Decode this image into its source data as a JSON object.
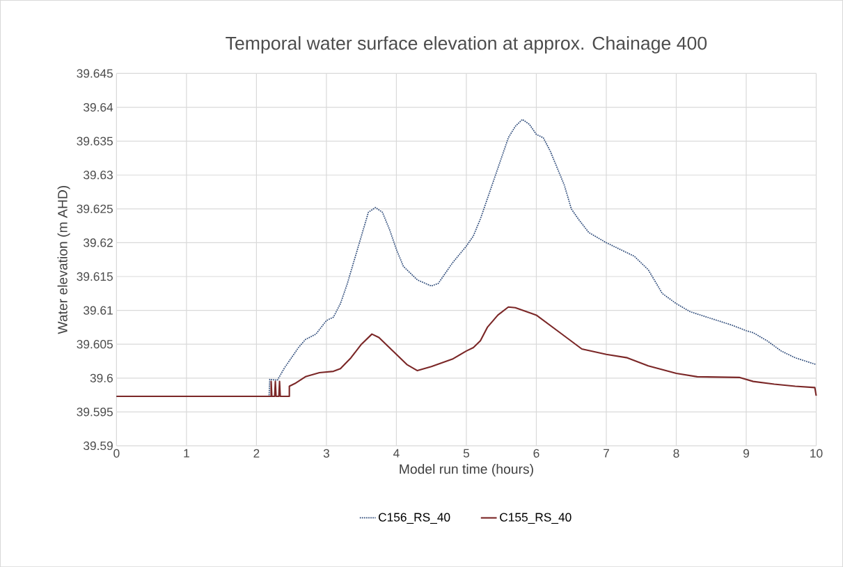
{
  "chart_data": {
    "type": "line",
    "title": "Temporal water surface elevation at approx. Chainage 400",
    "xlabel": "Model run time (hours)",
    "ylabel": "Water elevation (m AHD)",
    "xlim": [
      0,
      10
    ],
    "xticks": [
      0,
      1,
      2,
      3,
      4,
      5,
      6,
      7,
      8,
      9,
      10
    ],
    "ylim": [
      39.59,
      39.645
    ],
    "yticks": [
      39.59,
      39.595,
      39.6,
      39.605,
      39.61,
      39.615,
      39.62,
      39.625,
      39.63,
      39.635,
      39.64,
      39.645
    ],
    "grid": true,
    "legend": "bottom",
    "marker": "none",
    "series": [
      {
        "name": "C156_RS_40",
        "color": "#2e4b7a",
        "line_style": "dotted",
        "x": [
          0,
          2.18,
          2.19,
          2.3,
          2.4,
          2.5,
          2.6,
          2.7,
          2.85,
          3.0,
          3.1,
          3.2,
          3.3,
          3.4,
          3.5,
          3.6,
          3.7,
          3.8,
          3.9,
          4.0,
          4.1,
          4.3,
          4.5,
          4.6,
          4.8,
          5.0,
          5.1,
          5.2,
          5.3,
          5.4,
          5.5,
          5.6,
          5.7,
          5.8,
          5.9,
          6.0,
          6.1,
          6.2,
          6.3,
          6.4,
          6.5,
          6.6,
          6.75,
          7.0,
          7.2,
          7.4,
          7.6,
          7.8,
          8.0,
          8.2,
          8.5,
          8.8,
          9.0,
          9.1,
          9.3,
          9.5,
          9.7,
          10.0
        ],
        "values": [
          39.5973,
          39.5973,
          39.5998,
          39.5997,
          39.6015,
          39.603,
          39.6045,
          39.6057,
          39.6065,
          39.6085,
          39.609,
          39.611,
          39.614,
          39.6175,
          39.621,
          39.6245,
          39.6252,
          39.6245,
          39.622,
          39.619,
          39.6165,
          39.6145,
          39.6136,
          39.614,
          39.617,
          39.6195,
          39.621,
          39.6235,
          39.6265,
          39.6295,
          39.6325,
          39.6355,
          39.6372,
          39.6382,
          39.6375,
          39.636,
          39.6355,
          39.6335,
          39.631,
          39.6285,
          39.625,
          39.6235,
          39.6215,
          39.62,
          39.619,
          39.618,
          39.616,
          39.6125,
          39.611,
          39.6098,
          39.6088,
          39.6078,
          39.607,
          39.6067,
          39.6055,
          39.604,
          39.603,
          39.602
        ]
      },
      {
        "name": "C155_RS_40",
        "color": "#7b2727",
        "line_style": "solid",
        "x": [
          0,
          2.2,
          2.21,
          2.21,
          2.22,
          2.26,
          2.27,
          2.28,
          2.32,
          2.33,
          2.34,
          2.47,
          2.47,
          2.55,
          2.7,
          2.9,
          3.1,
          3.2,
          3.35,
          3.5,
          3.65,
          3.75,
          4.0,
          4.15,
          4.3,
          4.5,
          4.8,
          5.0,
          5.1,
          5.2,
          5.3,
          5.45,
          5.6,
          5.7,
          6.0,
          6.3,
          6.65,
          7.0,
          7.3,
          7.6,
          8.0,
          8.3,
          8.9,
          9.1,
          9.4,
          9.7,
          9.98,
          10.0
        ],
        "values": [
          39.5973,
          39.5973,
          39.5973,
          39.5995,
          39.5973,
          39.5973,
          39.5995,
          39.5973,
          39.5973,
          39.5995,
          39.5973,
          39.5973,
          39.5988,
          39.5992,
          39.6002,
          39.6008,
          39.601,
          39.6014,
          39.603,
          39.605,
          39.6065,
          39.606,
          39.6035,
          39.602,
          39.6011,
          39.6017,
          39.6028,
          39.604,
          39.6045,
          39.6055,
          39.6075,
          39.6093,
          39.6105,
          39.6104,
          39.6093,
          39.607,
          39.6043,
          39.6035,
          39.603,
          39.6018,
          39.6007,
          39.6002,
          39.6001,
          39.5995,
          39.5991,
          39.5988,
          39.5986,
          39.5974
        ]
      }
    ]
  }
}
